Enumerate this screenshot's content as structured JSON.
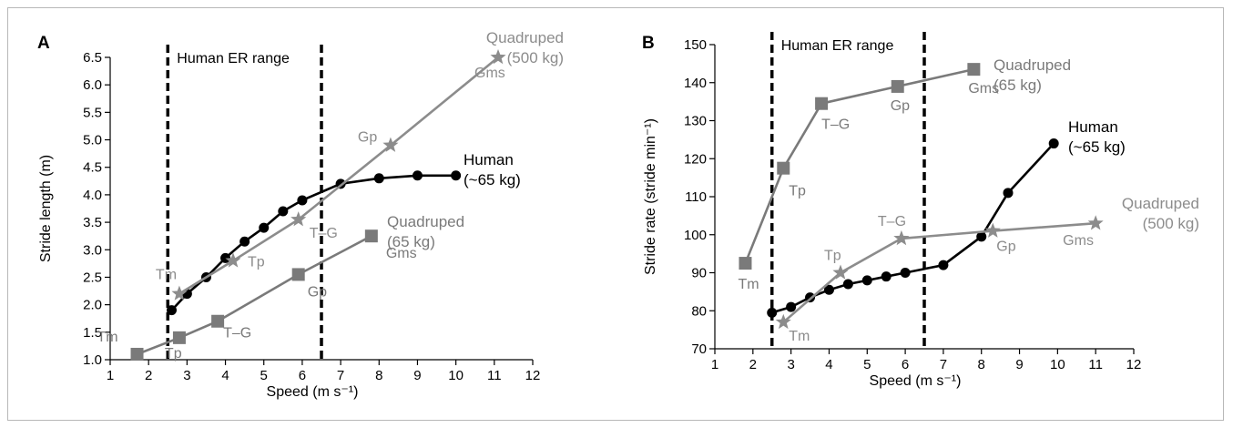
{
  "chart_data": [
    {
      "type": "line",
      "panel": "A",
      "xlabel": "Speed  (m s⁻¹)",
      "ylabel": "Stride length (m)",
      "xlim": [
        1,
        12
      ],
      "ylim": [
        1.0,
        6.5
      ],
      "xticks": [
        "1",
        "2",
        "3",
        "4",
        "5",
        "6",
        "7",
        "8",
        "9",
        "10",
        "11",
        "12"
      ],
      "yticks": [
        "1.0",
        "1.5",
        "2.0",
        "2.5",
        "3.0",
        "3.5",
        "4.0",
        "4.5",
        "5.0",
        "5.5",
        "6.0",
        "6.5"
      ],
      "range_label": "Human ER range",
      "range": [
        2.5,
        6.5
      ],
      "series": [
        {
          "label_lines": [
            "Human",
            "(~65 kg)"
          ],
          "color": "#000000",
          "marker": "circle",
          "x": [
            2.6,
            3.0,
            3.5,
            4.0,
            4.5,
            5.0,
            5.5,
            6.0,
            7.0,
            8.0,
            9.0,
            10.0
          ],
          "y": [
            1.9,
            2.2,
            2.5,
            2.85,
            3.15,
            3.4,
            3.7,
            3.9,
            4.2,
            4.3,
            4.35,
            4.35
          ],
          "point_labels": []
        },
        {
          "label_lines": [
            "Quadruped",
            "(500 kg)"
          ],
          "color": "#8c8c8c",
          "marker": "star",
          "x": [
            2.8,
            4.2,
            5.9,
            8.3,
            11.1
          ],
          "y": [
            2.2,
            2.8,
            3.55,
            4.9,
            6.5
          ],
          "point_labels": [
            "Tm",
            "Tp",
            "T–G",
            "Gp",
            "Gms"
          ]
        },
        {
          "label_lines": [
            "Quadruped",
            "(65 kg)"
          ],
          "color": "#7a7a7a",
          "marker": "square",
          "x": [
            1.7,
            2.8,
            3.8,
            5.9,
            7.8
          ],
          "y": [
            1.1,
            1.4,
            1.7,
            2.55,
            3.25
          ],
          "point_labels": [
            "Tm",
            "Tp",
            "T–G",
            "Gp",
            "Gms"
          ]
        }
      ]
    },
    {
      "type": "line",
      "panel": "B",
      "xlabel": "Speed  (m s⁻¹)",
      "ylabel": "Stride rate (stride min⁻¹)",
      "xlim": [
        1,
        12
      ],
      "ylim": [
        70,
        150
      ],
      "xticks": [
        "1",
        "2",
        "3",
        "4",
        "5",
        "6",
        "7",
        "8",
        "9",
        "10",
        "11",
        "12"
      ],
      "yticks": [
        "70",
        "80",
        "90",
        "100",
        "110",
        "120",
        "130",
        "140",
        "150"
      ],
      "range_label": "Human ER range",
      "range": [
        2.5,
        6.5
      ],
      "series": [
        {
          "label_lines": [
            "Human",
            "(~65 kg)"
          ],
          "color": "#000000",
          "marker": "circle",
          "x": [
            2.5,
            3.0,
            3.5,
            4.0,
            4.5,
            5.0,
            5.5,
            6.0,
            7.0,
            8.0,
            8.7,
            9.9
          ],
          "y": [
            79.5,
            81,
            83.5,
            85.5,
            87,
            88,
            89,
            90,
            92,
            99.5,
            111,
            124
          ],
          "point_labels": []
        },
        {
          "label_lines": [
            "Quadruped",
            "(500 kg)"
          ],
          "color": "#8c8c8c",
          "marker": "star",
          "x": [
            2.8,
            4.3,
            5.9,
            8.3,
            11.0
          ],
          "y": [
            77,
            90,
            99,
            101,
            103
          ],
          "point_labels": [
            "Tm",
            "Tp",
            "T–G",
            "Gp",
            "Gms"
          ]
        },
        {
          "label_lines": [
            "Quadruped",
            "(65 kg)"
          ],
          "color": "#7a7a7a",
          "marker": "square",
          "x": [
            1.8,
            2.8,
            3.8,
            5.8,
            7.8
          ],
          "y": [
            92.5,
            117.5,
            134.5,
            139,
            143.5
          ],
          "point_labels": [
            "Tm",
            "Tp",
            "T–G",
            "Gp",
            "Gms"
          ]
        }
      ]
    }
  ]
}
